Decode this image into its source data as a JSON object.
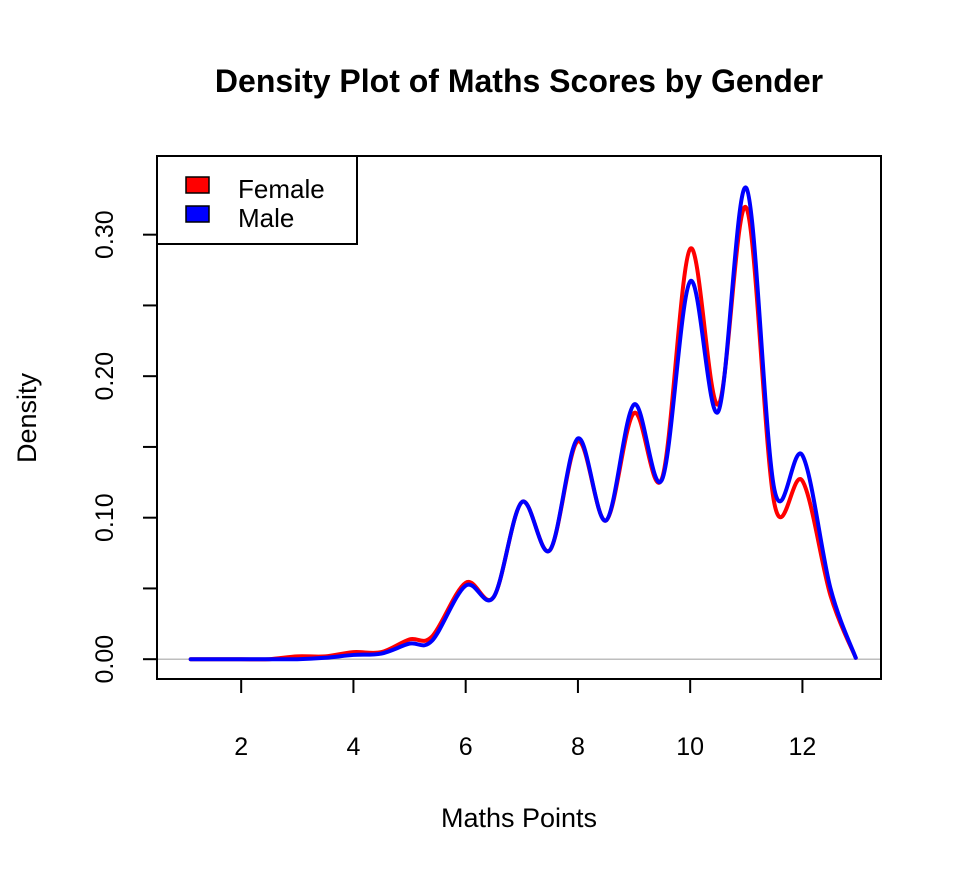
{
  "chart_data": {
    "type": "line",
    "title": "Density Plot of Maths Scores by Gender",
    "xlabel": "Maths Points",
    "ylabel": "Density",
    "xlim": [
      0.5,
      13.4
    ],
    "ylim": [
      -0.014,
      0.3556
    ],
    "x_ticks": [
      2,
      4,
      6,
      8,
      10,
      12
    ],
    "x_tick_labels": [
      "2",
      "4",
      "6",
      "8",
      "10",
      "12"
    ],
    "y_ticks": [
      0.0,
      0.05,
      0.1,
      0.15,
      0.2,
      0.25,
      0.3
    ],
    "y_tick_labels": [
      "0.00",
      "",
      "0.10",
      "",
      "0.20",
      "",
      "0.30"
    ],
    "baseline": 0,
    "legend": {
      "position": "top-left",
      "entries": [
        {
          "label": "Female",
          "color": "#ff0000"
        },
        {
          "label": "Male",
          "color": "#0000ff"
        }
      ]
    },
    "series": [
      {
        "name": "Female",
        "color": "#ff0000",
        "points": [
          [
            1.1,
            0.0
          ],
          [
            2.0,
            0.0
          ],
          [
            2.5,
            0.0
          ],
          [
            3.0,
            0.002
          ],
          [
            3.5,
            0.002
          ],
          [
            4.0,
            0.005
          ],
          [
            4.5,
            0.005
          ],
          [
            5.0,
            0.014
          ],
          [
            5.4,
            0.016
          ],
          [
            6.0,
            0.054
          ],
          [
            6.5,
            0.044
          ],
          [
            7.0,
            0.111
          ],
          [
            7.5,
            0.077
          ],
          [
            8.0,
            0.154
          ],
          [
            8.5,
            0.098
          ],
          [
            9.0,
            0.174
          ],
          [
            9.5,
            0.128
          ],
          [
            10.0,
            0.29
          ],
          [
            10.5,
            0.18
          ],
          [
            11.0,
            0.319
          ],
          [
            11.5,
            0.11
          ],
          [
            12.0,
            0.126
          ],
          [
            12.5,
            0.045
          ],
          [
            12.95,
            0.001
          ]
        ]
      },
      {
        "name": "Male",
        "color": "#0000ff",
        "points": [
          [
            1.1,
            0.0
          ],
          [
            2.0,
            0.0
          ],
          [
            2.5,
            0.0
          ],
          [
            3.0,
            0.0
          ],
          [
            3.5,
            0.001
          ],
          [
            4.0,
            0.003
          ],
          [
            4.5,
            0.004
          ],
          [
            5.0,
            0.011
          ],
          [
            5.4,
            0.013
          ],
          [
            6.0,
            0.052
          ],
          [
            6.5,
            0.044
          ],
          [
            7.0,
            0.111
          ],
          [
            7.5,
            0.077
          ],
          [
            8.0,
            0.156
          ],
          [
            8.5,
            0.098
          ],
          [
            9.0,
            0.18
          ],
          [
            9.5,
            0.127
          ],
          [
            10.0,
            0.267
          ],
          [
            10.5,
            0.175
          ],
          [
            11.0,
            0.333
          ],
          [
            11.5,
            0.12
          ],
          [
            12.0,
            0.144
          ],
          [
            12.5,
            0.05
          ],
          [
            12.95,
            0.001
          ]
        ]
      }
    ]
  }
}
